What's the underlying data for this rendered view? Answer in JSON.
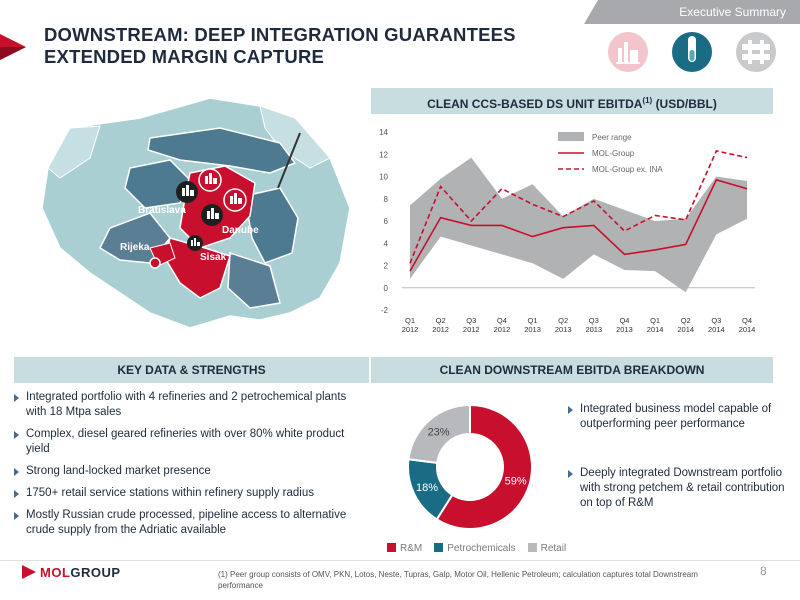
{
  "header": {
    "tab": "Executive Summary",
    "title": "DOWNSTREAM: DEEP INTEGRATION GUARANTEES EXTENDED MARGIN CAPTURE",
    "segment_icons": [
      "refinery-icon",
      "test-tube-icon",
      "pipeline-icon"
    ]
  },
  "map": {
    "labels": [
      "Bratislava",
      "Danube",
      "Rijeka",
      "Sisak"
    ]
  },
  "chart_title": "CLEAN CCS-BASED DS UNIT EBITDA",
  "chart_title_sup": "(1)",
  "chart_title_unit": "(USD/BBL)",
  "chart_data": [
    {
      "type": "line",
      "categories": [
        "Q1 2012",
        "Q2 2012",
        "Q3 2012",
        "Q4 2012",
        "Q1 2013",
        "Q2 2013",
        "Q3 2013",
        "Q4 2013",
        "Q1 2014",
        "Q2 2014",
        "Q3 2014",
        "Q4 2014"
      ],
      "category_lines": [
        [
          "Q1",
          "2012"
        ],
        [
          "Q2",
          "2012"
        ],
        [
          "Q3",
          "2012"
        ],
        [
          "Q4",
          "2012"
        ],
        [
          "Q1",
          "2013"
        ],
        [
          "Q2",
          "2013"
        ],
        [
          "Q3",
          "2013"
        ],
        [
          "Q4",
          "2013"
        ],
        [
          "Q1",
          "2014"
        ],
        [
          "Q2",
          "2014"
        ],
        [
          "Q3",
          "2014"
        ],
        [
          "Q4",
          "2014"
        ]
      ],
      "ylim": [
        -2,
        14
      ],
      "yticks": [
        -2,
        0,
        2,
        4,
        6,
        8,
        10,
        12,
        14
      ],
      "band": {
        "name": "Peer range",
        "low": [
          0.8,
          4.6,
          3.8,
          3.0,
          2.2,
          0.8,
          3.0,
          1.6,
          1.5,
          -0.4,
          4.8,
          6.2
        ],
        "high": [
          7.4,
          9.8,
          11.7,
          8.0,
          9.3,
          6.4,
          8.0,
          7.0,
          6.0,
          6.2,
          10.0,
          9.6
        ]
      },
      "series": [
        {
          "name": "MOL-Group",
          "values": [
            1.5,
            6.3,
            5.6,
            5.6,
            4.6,
            5.4,
            5.6,
            3.0,
            3.4,
            3.9,
            9.7,
            8.9
          ]
        },
        {
          "name": "MOL-Group ex. INA",
          "values": [
            2.2,
            9.1,
            6.0,
            8.9,
            7.5,
            6.4,
            7.8,
            5.1,
            6.5,
            6.1,
            12.3,
            11.7
          ]
        }
      ],
      "legend_position": "top-right",
      "grid": false
    },
    {
      "type": "pie",
      "title": "CLEAN DOWNSTREAM EBITDA BREAKDOWN",
      "categories": [
        "R&M",
        "Petrochemicals",
        "Retail"
      ],
      "values": [
        59,
        18,
        23
      ],
      "labels": [
        "59%",
        "18%",
        "23%"
      ],
      "colors": [
        "#c8102e",
        "#1a6c84",
        "#b7b9bc"
      ]
    }
  ],
  "key_data": {
    "title": "KEY DATA & STRENGTHS",
    "items": [
      "Integrated portfolio with 4 refineries and 2 petrochemical plants with 18 Mtpa sales",
      "Complex, diesel geared refineries with over 80% white product yield",
      "Strong land-locked market presence",
      "1750+ retail service stations within refinery supply radius",
      "Mostly Russian crude processed, pipeline access to alternative crude supply from the Adriatic available"
    ]
  },
  "right_points": [
    "Integrated business model capable  of outperforming peer performance",
    "Deeply integrated Downstream portfolio with strong petchem & retail contribution on top of R&M"
  ],
  "footer": {
    "logo_mol": "MOL",
    "logo_group": "GROUP",
    "footnote": "(1) Peer group consists of OMV, PKN, Lotos, Neste, Tupras, Galp, Motor Oil, Hellenic Petroleum;  calculation captures total Downstream  performance",
    "page": "8"
  },
  "colors": {
    "accent": "#c8102e",
    "teal": "#1a6c84",
    "banner": "#c7dde0",
    "navy": "#1f2b3d",
    "peer": "#b1b2b4"
  }
}
